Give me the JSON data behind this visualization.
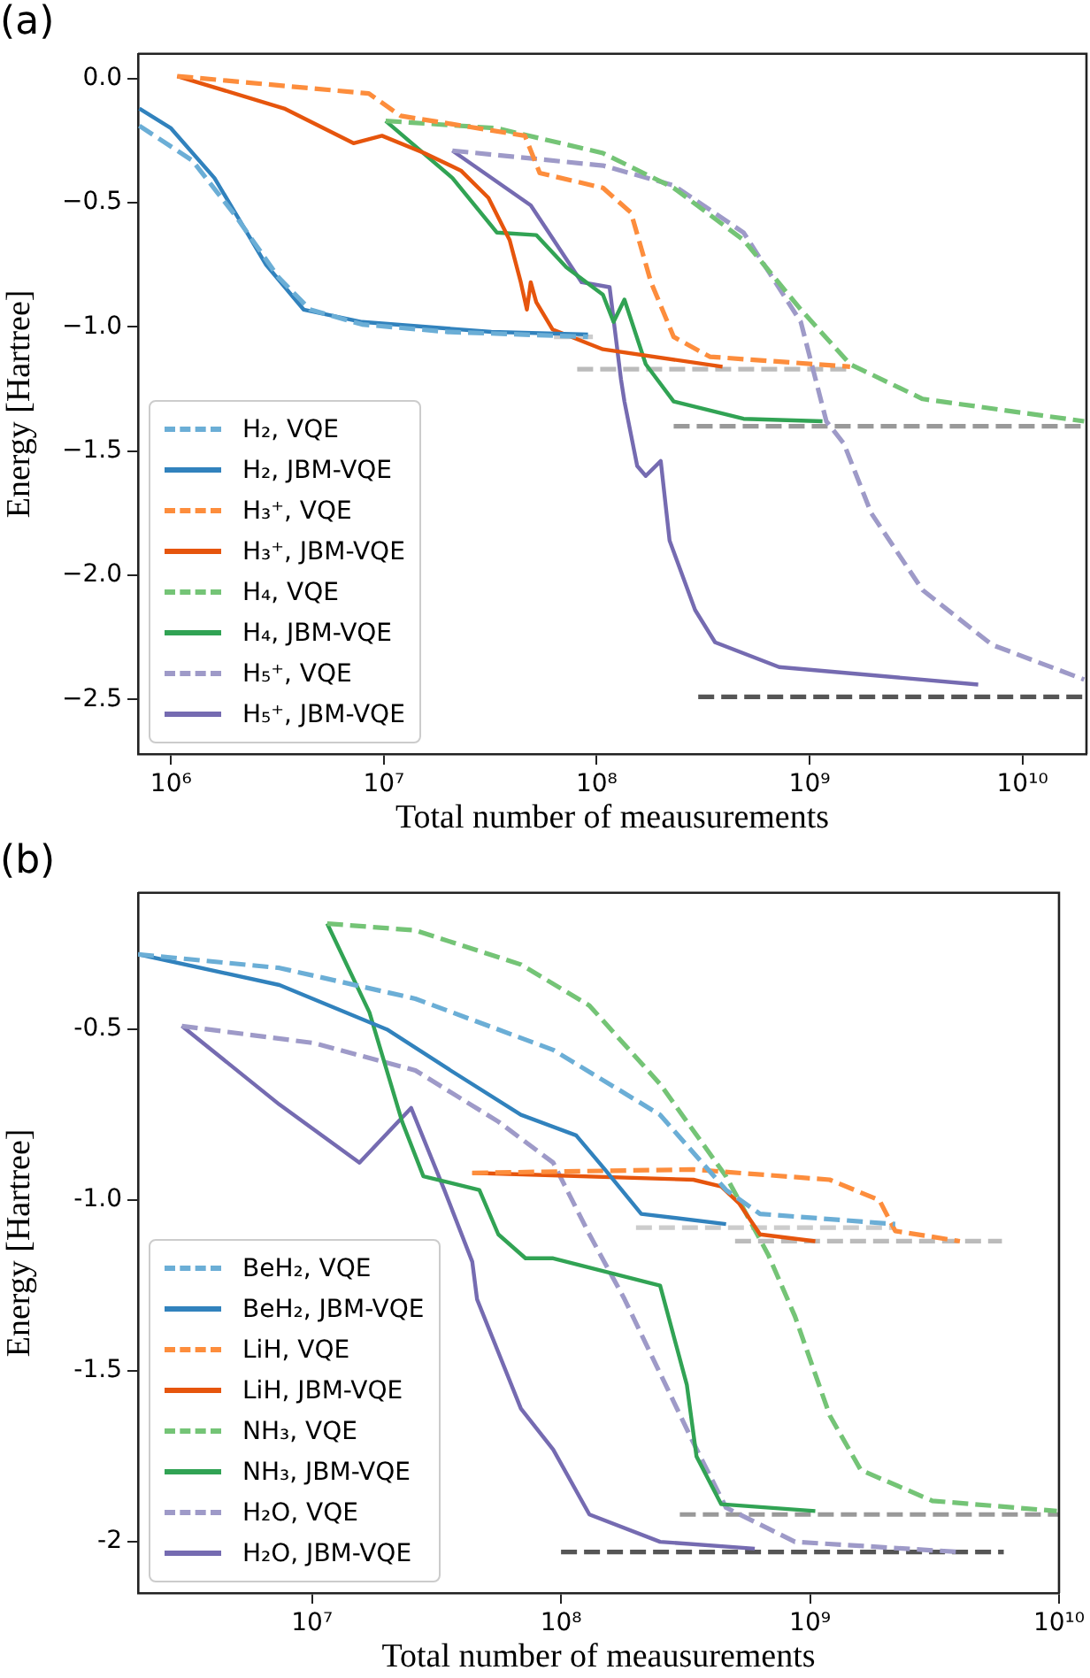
{
  "chart_data": [
    {
      "type": "line",
      "title": "(a)",
      "xlabel": "Total number of meausurements",
      "ylabel": "Energy [Hartree]",
      "log": "x",
      "legend": "bottom left",
      "marker": "none",
      "grid": false,
      "xlim": [
        700000.0,
        20000000000.0
      ],
      "xticks": [
        {
          "value": 1000000.0,
          "label": "10⁶"
        },
        {
          "value": 10000000.0,
          "label": "10⁷"
        },
        {
          "value": 100000000.0,
          "label": "10⁸"
        },
        {
          "value": 1000000000.0,
          "label": "10⁹"
        },
        {
          "value": 10000000000.0,
          "label": "10¹⁰"
        }
      ],
      "ylim": [
        -2.72,
        0.1
      ],
      "yticks": [
        {
          "value": 0,
          "label": "0.0"
        },
        {
          "value": -0.5,
          "label": "−0.5"
        },
        {
          "value": -1,
          "label": "−1.0"
        },
        {
          "value": -1.5,
          "label": "−1.5"
        },
        {
          "value": -2,
          "label": "−2.0"
        },
        {
          "value": -2.5,
          "label": "−2.5"
        }
      ],
      "series": [
        {
          "name": "H₂, VQE",
          "color": "#6baed6",
          "line_style": "dashed",
          "x": [
            710000.0,
            1260000.0,
            2000000.0,
            3200000.0,
            4500000.0,
            7900000.0,
            20000000.0,
            91000000.0
          ],
          "values": [
            -0.19,
            -0.33,
            -0.55,
            -0.8,
            -0.93,
            -0.99,
            -1.02,
            -1.04
          ]
        },
        {
          "name": "H₂, JBM-VQE",
          "color": "#3182bd",
          "line_style": "solid",
          "x": [
            710000.0,
            1000000.0,
            1600000.0,
            2800000.0,
            4200000.0,
            7900000.0,
            32000000.0,
            91000000.0
          ],
          "values": [
            -0.12,
            -0.2,
            -0.4,
            -0.75,
            -0.93,
            -0.98,
            -1.02,
            -1.03
          ]
        },
        {
          "name": "H₃⁺, VQE",
          "color": "#fd8d3c",
          "line_style": "dashed",
          "x": [
            1070000.0,
            8500000.0,
            12000000.0,
            46000000.0,
            54000000.0,
            107000000.0,
            145000000.0,
            180000000.0,
            230000000.0,
            340000000.0,
            1550000000.0
          ],
          "values": [
            0.01,
            -0.06,
            -0.15,
            -0.23,
            -0.38,
            -0.44,
            -0.54,
            -0.82,
            -1.04,
            -1.12,
            -1.16
          ]
        },
        {
          "name": "H₃⁺, JBM-VQE",
          "color": "#e6550d",
          "line_style": "solid",
          "x": [
            1070000.0,
            3400000.0,
            7200000.0,
            9800000.0,
            15500000.0,
            23000000.0,
            31000000.0,
            39000000.0,
            44000000.0,
            47000000.0,
            49000000.0,
            52000000.0,
            62000000.0,
            107000000.0,
            390000000.0
          ],
          "values": [
            0.01,
            -0.12,
            -0.26,
            -0.23,
            -0.3,
            -0.37,
            -0.48,
            -0.65,
            -0.82,
            -0.93,
            -0.82,
            -0.9,
            -1.01,
            -1.09,
            -1.16
          ]
        },
        {
          "name": "H₄, VQE",
          "color": "#74c476",
          "line_style": "dashed",
          "x": [
            10200000.0,
            34000000.0,
            107000000.0,
            230000000.0,
            490000000.0,
            910000000.0,
            1550000000.0,
            3400000000.0,
            19500000000.0
          ],
          "values": [
            -0.17,
            -0.2,
            -0.3,
            -0.44,
            -0.65,
            -0.93,
            -1.15,
            -1.29,
            -1.38
          ]
        },
        {
          "name": "H₄, JBM-VQE",
          "color": "#31a354",
          "line_style": "solid",
          "x": [
            10200000.0,
            21000000.0,
            34000000.0,
            52000000.0,
            72000000.0,
            107000000.0,
            120000000.0,
            135000000.0,
            170000000.0,
            230000000.0,
            490000000.0,
            1150000000.0
          ],
          "values": [
            -0.17,
            -0.4,
            -0.62,
            -0.63,
            -0.76,
            -0.87,
            -0.98,
            -0.89,
            -1.15,
            -1.3,
            -1.37,
            -1.38
          ]
        },
        {
          "name": "H₅⁺, VQE",
          "color": "#9e9ac8",
          "line_style": "dashed",
          "x": [
            21000000.0,
            107000000.0,
            230000000.0,
            490000000.0,
            910000000.0,
            1200000000.0,
            1450000000.0,
            1950000000.0,
            3400000000.0,
            7200000000.0,
            19500000000.0
          ],
          "values": [
            -0.29,
            -0.35,
            -0.43,
            -0.62,
            -0.98,
            -1.38,
            -1.47,
            -1.75,
            -2.06,
            -2.28,
            -2.42
          ]
        },
        {
          "name": "H₅⁺, JBM-VQE",
          "color": "#756bb1",
          "line_style": "solid",
          "x": [
            21000000.0,
            49000000.0,
            85000000.0,
            115000000.0,
            130000000.0,
            135000000.0,
            155000000.0,
            170000000.0,
            200000000.0,
            220000000.0,
            290000000.0,
            360000000.0,
            720000000.0,
            6200000000.0
          ],
          "values": [
            -0.29,
            -0.51,
            -0.82,
            -0.84,
            -1.21,
            -1.3,
            -1.56,
            -1.6,
            -1.54,
            -1.86,
            -2.14,
            -2.27,
            -2.37,
            -2.44
          ]
        },
        {
          "color": "#cccccc",
          "line_style": "dashed",
          "x": [
            63000000.0,
            98000000.0
          ],
          "values": [
            -1.04,
            -1.04
          ]
        },
        {
          "color": "#bbbbbb",
          "line_style": "dashed",
          "x": [
            81000000.0,
            1500000000.0
          ],
          "values": [
            -1.17,
            -1.17
          ]
        },
        {
          "color": "#999999",
          "line_style": "dashed",
          "x": [
            230000000.0,
            20000000000.0
          ],
          "values": [
            -1.4,
            -1.4
          ]
        },
        {
          "color": "#555555",
          "line_style": "dashed",
          "x": [
            300000000.0,
            20000000000.0
          ],
          "values": [
            -2.49,
            -2.49
          ]
        }
      ]
    },
    {
      "type": "line",
      "title": "(b)",
      "xlabel": "Total number of meausurements",
      "ylabel": "Energy [Hartree]",
      "log": "x",
      "legend": "bottom left",
      "marker": "none",
      "grid": false,
      "xlim": [
        2000000.0,
        10000000000.0
      ],
      "xticks": [
        {
          "value": 10000000.0,
          "label": "10⁷"
        },
        {
          "value": 100000000.0,
          "label": "10⁸"
        },
        {
          "value": 1000000000.0,
          "label": "10⁹"
        },
        {
          "value": 10000000000.0,
          "label": "10¹⁰"
        }
      ],
      "ylim": [
        -2.15,
        -0.1
      ],
      "yticks": [
        {
          "value": -0.5,
          "label": "-0.5"
        },
        {
          "value": -1,
          "label": "-1.0"
        },
        {
          "value": -1.5,
          "label": "-1.5"
        },
        {
          "value": -2,
          "label": "-2"
        }
      ],
      "series": [
        {
          "name": "BeH₂, VQE",
          "color": "#6baed6",
          "line_style": "dashed",
          "x": [
            2000000.0,
            7400000.0,
            26000000.0,
            93000000.0,
            250000000.0,
            460000000.0,
            630000000.0,
            2200000000.0
          ],
          "values": [
            -0.28,
            -0.32,
            -0.41,
            -0.56,
            -0.75,
            -0.97,
            -1.04,
            -1.07
          ]
        },
        {
          "name": "BeH₂, JBM-VQE",
          "color": "#3182bd",
          "line_style": "solid",
          "x": [
            2000000.0,
            7400000.0,
            20000000.0,
            36000000.0,
            69000000.0,
            115000000.0,
            150000000.0,
            210000000.0,
            460000000.0
          ],
          "values": [
            -0.28,
            -0.37,
            -0.5,
            -0.62,
            -0.75,
            -0.81,
            -0.91,
            -1.04,
            -1.07
          ]
        },
        {
          "name": "LiH, VQE",
          "color": "#fd8d3c",
          "line_style": "dashed",
          "x": [
            44000000.0,
            340000000.0,
            1200000000.0,
            1900000000.0,
            2200000000.0,
            4000000000.0
          ],
          "values": [
            -0.92,
            -0.91,
            -0.94,
            -1.0,
            -1.09,
            -1.12
          ]
        },
        {
          "name": "LiH, JBM-VQE",
          "color": "#e6550d",
          "line_style": "solid",
          "x": [
            44000000.0,
            340000000.0,
            440000000.0,
            520000000.0,
            630000000.0,
            1050000000.0
          ],
          "values": [
            -0.92,
            -0.94,
            -0.96,
            -1.01,
            -1.1,
            -1.12
          ]
        },
        {
          "name": "NH₃, VQE",
          "color": "#74c476",
          "line_style": "dashed",
          "x": [
            11500000.0,
            26000000.0,
            69000000.0,
            130000000.0,
            250000000.0,
            460000000.0,
            680000000.0,
            870000000.0,
            1200000000.0,
            1600000000.0,
            3100000000.0,
            9800000000.0
          ],
          "values": [
            -0.19,
            -0.21,
            -0.31,
            -0.43,
            -0.66,
            -0.93,
            -1.16,
            -1.34,
            -1.63,
            -1.79,
            -1.88,
            -1.91
          ]
        },
        {
          "name": "NH₃, JBM-VQE",
          "color": "#31a354",
          "line_style": "solid",
          "x": [
            11500000.0,
            17000000.0,
            23000000.0,
            28000000.0,
            47000000.0,
            56000000.0,
            72000000.0,
            93000000.0,
            250000000.0,
            320000000.0,
            350000000.0,
            440000000.0,
            1050000000.0
          ],
          "values": [
            -0.19,
            -0.45,
            -0.77,
            -0.93,
            -0.97,
            -1.1,
            -1.17,
            -1.17,
            -1.25,
            -1.54,
            -1.75,
            -1.89,
            -1.91
          ]
        },
        {
          "name": "H₂O, VQE",
          "color": "#9e9ac8",
          "line_style": "dashed",
          "x": [
            3000000.0,
            10200000.0,
            26000000.0,
            56000000.0,
            93000000.0,
            130000000.0,
            180000000.0,
            340000000.0,
            460000000.0,
            870000000.0,
            4000000000.0
          ],
          "values": [
            -0.49,
            -0.54,
            -0.62,
            -0.77,
            -0.89,
            -1.1,
            -1.29,
            -1.71,
            -1.9,
            -2.0,
            -2.03
          ]
        },
        {
          "name": "H₂O, JBM-VQE",
          "color": "#756bb1",
          "line_style": "solid",
          "x": [
            3000000.0,
            7400000.0,
            15500000.0,
            25000000.0,
            34000000.0,
            44000000.0,
            46000000.0,
            69000000.0,
            93000000.0,
            130000000.0,
            250000000.0,
            600000000.0
          ],
          "values": [
            -0.49,
            -0.72,
            -0.89,
            -0.73,
            -0.97,
            -1.18,
            -1.29,
            -1.61,
            -1.73,
            -1.92,
            -2.0,
            -2.02
          ]
        },
        {
          "color": "#cccccc",
          "line_style": "dashed",
          "x": [
            200000000.0,
            2200000000.0
          ],
          "values": [
            -1.08,
            -1.08
          ]
        },
        {
          "color": "#bbbbbb",
          "line_style": "dashed",
          "x": [
            500000000.0,
            5900000000.0
          ],
          "values": [
            -1.12,
            -1.12
          ]
        },
        {
          "color": "#999999",
          "line_style": "dashed",
          "x": [
            300000000.0,
            10000000000.0
          ],
          "values": [
            -1.92,
            -1.92
          ]
        },
        {
          "color": "#555555",
          "line_style": "dashed",
          "x": [
            100000000.0,
            6000000000.0
          ],
          "values": [
            -2.03,
            -2.03
          ]
        }
      ]
    }
  ]
}
